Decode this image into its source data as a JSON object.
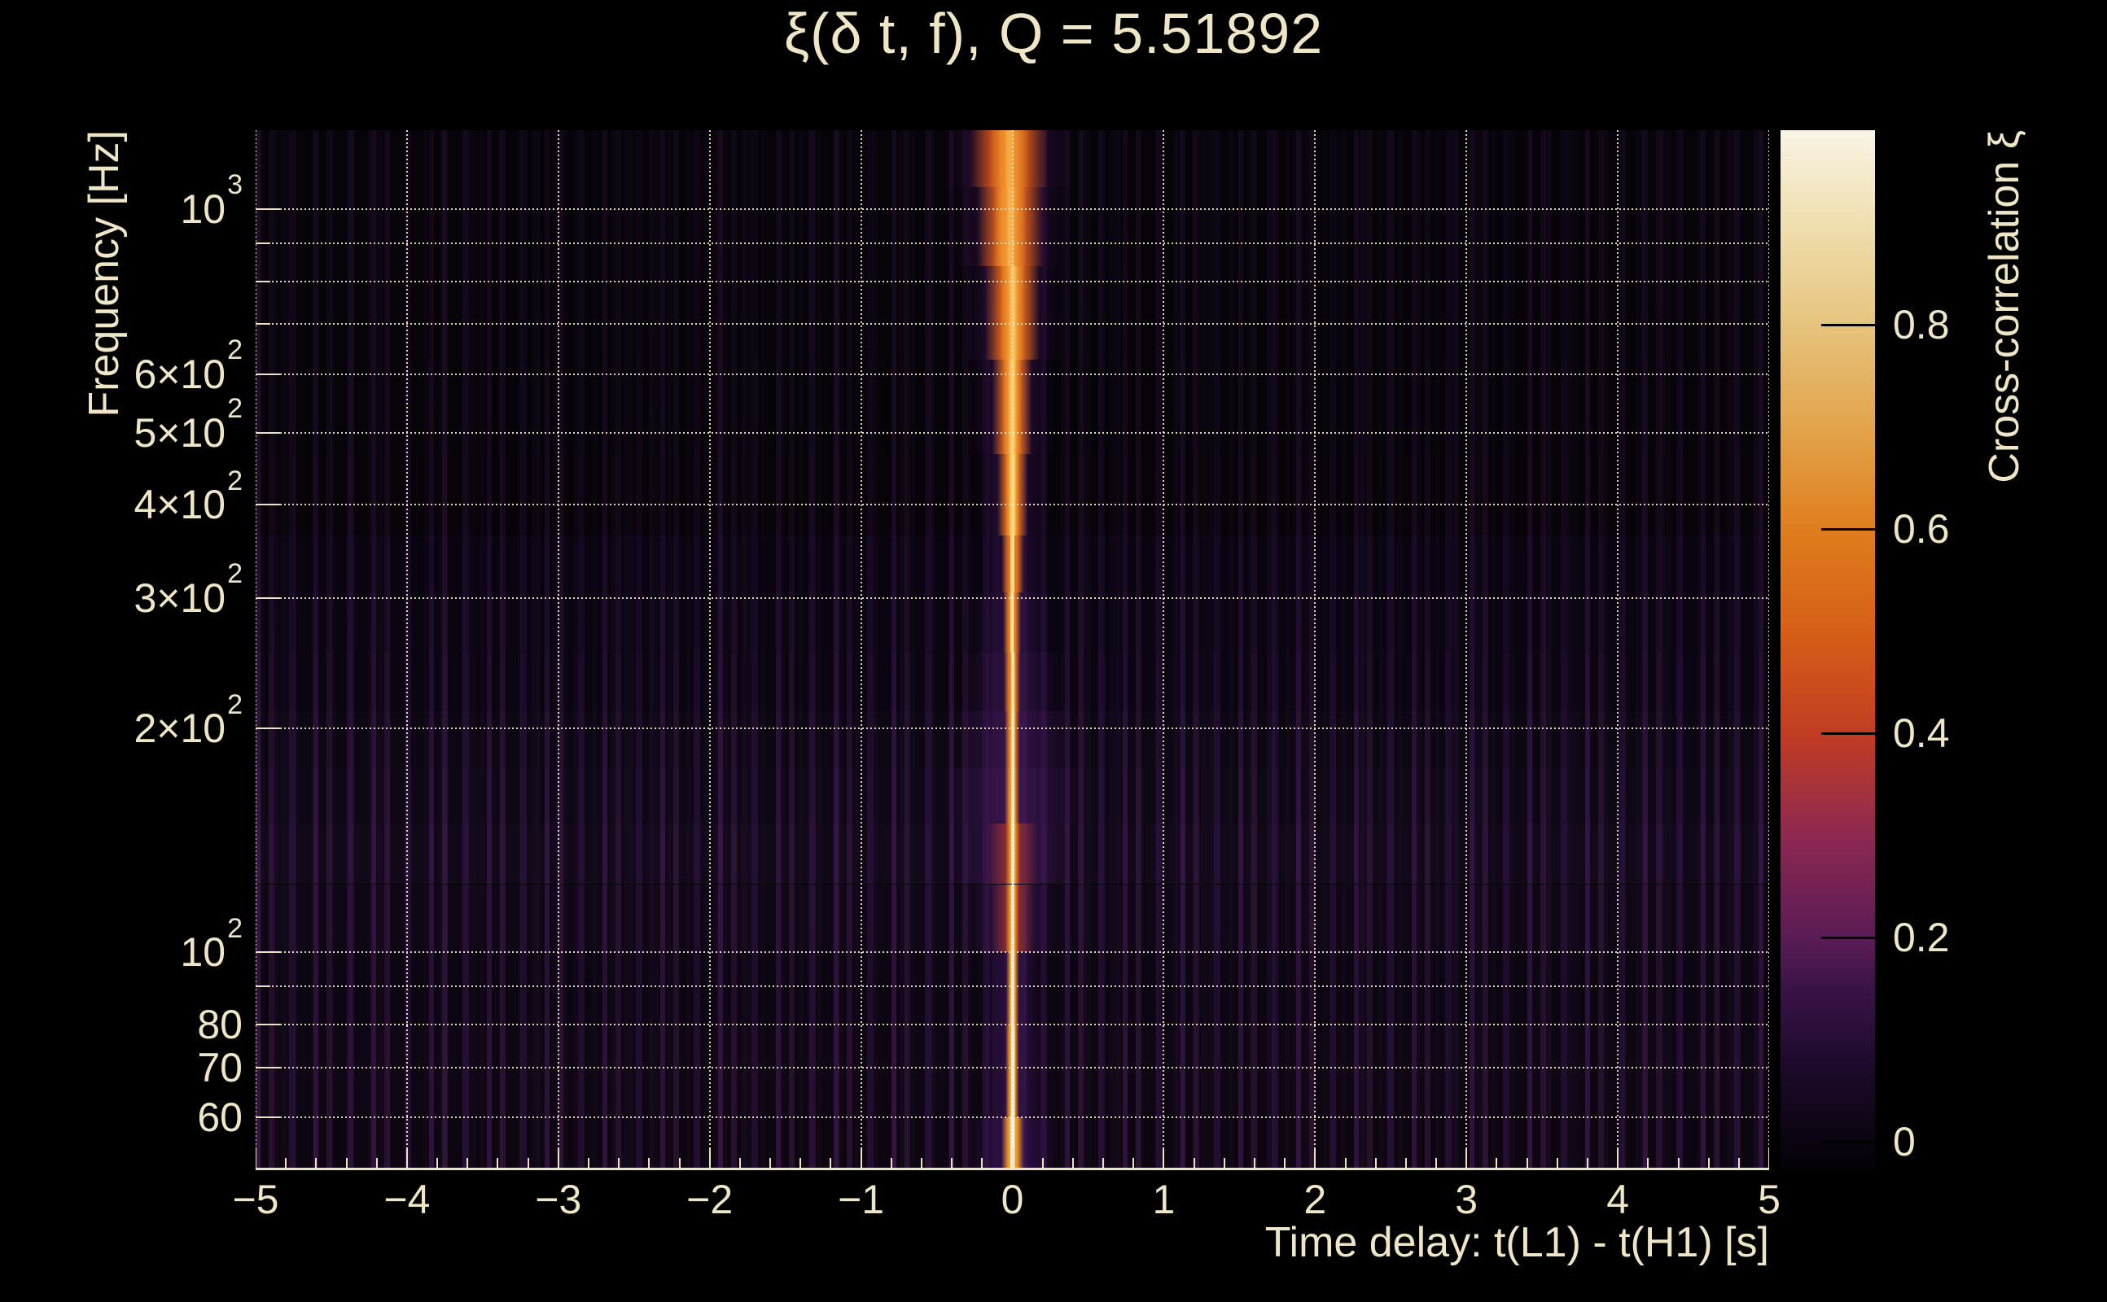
{
  "chart_data": {
    "type": "heatmap",
    "title": "ξ(δ t, f), Q = 5.51892",
    "x_axis": {
      "label": "Time delay: t(L1) - t(H1) [s]",
      "min": -5,
      "max": 5,
      "major_ticks": [
        -5,
        -4,
        -3,
        -2,
        -1,
        0,
        1,
        2,
        3,
        4,
        5
      ],
      "major_tick_labels": [
        "−5",
        "−4",
        "−3",
        "−2",
        "−1",
        "0",
        "1",
        "2",
        "3",
        "4",
        "5"
      ],
      "minor_tick_step": 0.2,
      "grid": "dotted"
    },
    "y_axis": {
      "label": "Frequency [Hz]",
      "scale": "log",
      "min": 50.9,
      "max": 1277,
      "labeled_ticks": [
        {
          "f": 1000,
          "base": "10",
          "sup": "3"
        },
        {
          "f": 600,
          "base": "6×10",
          "sup": "2"
        },
        {
          "f": 500,
          "base": "5×10",
          "sup": "2"
        },
        {
          "f": 400,
          "base": "4×10",
          "sup": "2"
        },
        {
          "f": 300,
          "base": "3×10",
          "sup": "2"
        },
        {
          "f": 200,
          "base": "2×10",
          "sup": "2"
        },
        {
          "f": 100,
          "base": "10",
          "sup": "2"
        },
        {
          "f": 80,
          "base": "80"
        },
        {
          "f": 70,
          "base": "70"
        },
        {
          "f": 60,
          "base": "60"
        }
      ],
      "gridline_freqs": [
        60,
        70,
        80,
        90,
        100,
        200,
        300,
        400,
        500,
        600,
        700,
        800,
        900,
        1000
      ],
      "unlabeled_tick_freqs": [
        90,
        700,
        800,
        900
      ],
      "grid": "dotted"
    },
    "colorbar": {
      "label": "Cross-correlation ξ",
      "min": -0.028,
      "max": 0.99,
      "ticks": [
        0,
        0.2,
        0.4,
        0.6,
        0.8
      ],
      "tick_labels": [
        "0",
        "0.2",
        "0.4",
        "0.6",
        "0.8"
      ],
      "gradient": [
        {
          "v": -0.028,
          "c": "#030106"
        },
        {
          "v": 0,
          "c": "#0b0410"
        },
        {
          "v": 0.08,
          "c": "#1e0b2d"
        },
        {
          "v": 0.15,
          "c": "#3b1347"
        },
        {
          "v": 0.2,
          "c": "#5a1c55"
        },
        {
          "v": 0.3,
          "c": "#8e2851"
        },
        {
          "v": 0.4,
          "c": "#c23d22"
        },
        {
          "v": 0.5,
          "c": "#d65f17"
        },
        {
          "v": 0.6,
          "c": "#df7e1e"
        },
        {
          "v": 0.7,
          "c": "#e3a44c"
        },
        {
          "v": 0.8,
          "c": "#e6c47e"
        },
        {
          "v": 0.9,
          "c": "#f0dfb0"
        },
        {
          "v": 0.99,
          "c": "#f8f4e6"
        }
      ]
    },
    "signal": {
      "description": "Bright cross-correlation ridge centered at zero time delay, wide at high frequency, narrowing to a white-hot line at low frequency",
      "center_t": 0,
      "bands": [
        {
          "f1": 1277,
          "f2": 1070,
          "dt": -0.02,
          "noise": 0.18,
          "bg": "#060309",
          "layers": [
            {
              "hw": 0.038,
              "c": "#f9ab42",
              "flat": true
            },
            {
              "hw": 0.13,
              "c": "#ee8b25",
              "flat": true
            },
            {
              "hw": 0.26,
              "c": "#cc5212",
              "flat": true
            },
            {
              "hw": 0.42,
              "c": "#341148",
              "flat": false
            }
          ]
        },
        {
          "f1": 1070,
          "f2": 838,
          "dt": -0.015,
          "noise": 0.18,
          "bg": "#060309",
          "layers": [
            {
              "hw": 0.033,
              "c": "#f9b250",
              "flat": true
            },
            {
              "hw": 0.11,
              "c": "#f09228",
              "flat": true
            },
            {
              "hw": 0.22,
              "c": "#d25a14",
              "flat": true
            },
            {
              "hw": 0.38,
              "c": "#321147",
              "flat": false
            }
          ]
        },
        {
          "f1": 838,
          "f2": 627,
          "dt": 0,
          "noise": 0.18,
          "bg": "#060309",
          "layers": [
            {
              "hw": 0.027,
              "c": "#fbc05c",
              "flat": true
            },
            {
              "hw": 0.08,
              "c": "#f29a2e",
              "flat": true
            },
            {
              "hw": 0.18,
              "c": "#d66014",
              "flat": true
            },
            {
              "hw": 0.33,
              "c": "#2f1044",
              "flat": false
            }
          ]
        },
        {
          "f1": 627,
          "f2": 468,
          "dt": 0,
          "noise": 0.2,
          "bg": "#060309",
          "layers": [
            {
              "hw": 0.024,
              "c": "#fccb69",
              "flat": true
            },
            {
              "hw": 0.06,
              "c": "#f4a133",
              "flat": true
            },
            {
              "hw": 0.13,
              "c": "#da6616",
              "flat": true
            },
            {
              "hw": 0.28,
              "c": "#2c0f41",
              "flat": false
            }
          ]
        },
        {
          "f1": 468,
          "f2": 364,
          "dt": 0,
          "noise": 0.22,
          "bg": "#070309",
          "layers": [
            {
              "hw": 0.021,
              "c": "#fdd577",
              "flat": true
            },
            {
              "hw": 0.046,
              "c": "#f5a838",
              "flat": true
            },
            {
              "hw": 0.1,
              "c": "#dd6c17",
              "flat": true
            },
            {
              "hw": 0.24,
              "c": "#2a0e3e",
              "flat": false
            }
          ]
        },
        {
          "f1": 364,
          "f2": 305,
          "dt": 0,
          "noise": 0.25,
          "bg": "#090410",
          "layers": [
            {
              "hw": 0.019,
              "c": "#fedf88",
              "flat": true
            },
            {
              "hw": 0.075,
              "c": "#e07218",
              "flat": true
            },
            {
              "hw": 0.22,
              "c": "#2a0e3e",
              "flat": false
            }
          ]
        },
        {
          "f1": 305,
          "f2": 253,
          "dt": 0,
          "noise": 0.3,
          "bg": "#0a0511",
          "layers": [
            {
              "hw": 0.017,
              "c": "#ffe696",
              "flat": true
            },
            {
              "hw": 0.06,
              "c": "#e37718",
              "flat": true
            },
            {
              "hw": 0.26,
              "c": "#2e1045",
              "flat": false
            }
          ]
        },
        {
          "f1": 253,
          "f2": 211,
          "dt": 0,
          "noise": 0.35,
          "bg": "#0b0512",
          "layers": [
            {
              "hw": 0.016,
              "c": "#ffeba4",
              "flat": true
            },
            {
              "hw": 0.055,
              "c": "#e67c19",
              "flat": true
            },
            {
              "hw": 0.3,
              "c": "#331249",
              "flat": false
            }
          ]
        },
        {
          "f1": 211,
          "f2": 177,
          "dt": 0,
          "noise": 0.4,
          "bg": "#0d0714",
          "layers": [
            {
              "hw": 0.016,
              "c": "#ffefb2",
              "flat": true
            },
            {
              "hw": 0.05,
              "c": "#e8811a",
              "flat": true
            },
            {
              "hw": 0.38,
              "c": "#38144e",
              "flat": false
            }
          ]
        },
        {
          "f1": 177,
          "f2": 149,
          "dt": 0,
          "noise": 0.45,
          "bg": "#0e0715",
          "layers": [
            {
              "hw": 0.016,
              "c": "#fff3c0",
              "flat": true
            },
            {
              "hw": 0.05,
              "c": "#ea861b",
              "flat": true
            },
            {
              "hw": 0.45,
              "c": "#3c1653",
              "flat": false
            }
          ]
        },
        {
          "f1": 149,
          "f2": 123.5,
          "dt": 0,
          "noise": 0.5,
          "bg": "#110818",
          "layers": [
            {
              "hw": 0.016,
              "c": "#fff7d0",
              "flat": true
            },
            {
              "hw": 0.048,
              "c": "#ec8b1c",
              "flat": true
            },
            {
              "hw": 0.17,
              "c": "#a23226",
              "flat": false
            },
            {
              "hw": 0.4,
              "c": "#3f1757",
              "flat": false
            }
          ]
        },
        {
          "f1": 123.5,
          "f2": 100,
          "dt": 0,
          "noise": 0.45,
          "bg": "#100716",
          "layers": [
            {
              "hw": 0.015,
              "c": "#fffbe0",
              "flat": true
            },
            {
              "hw": 0.045,
              "c": "#ee8f1d",
              "flat": true
            },
            {
              "hw": 0.14,
              "c": "#aa3522",
              "flat": false
            },
            {
              "hw": 0.28,
              "c": "#3a1550",
              "flat": false
            }
          ]
        },
        {
          "f1": 100,
          "f2": 80,
          "dt": 0,
          "noise": 0.4,
          "bg": "#0c0512",
          "layers": [
            {
              "hw": 0.015,
              "c": "#fffdee",
              "flat": true
            },
            {
              "hw": 0.042,
              "c": "#ef931e",
              "flat": true
            },
            {
              "hw": 0.2,
              "c": "#30114a",
              "flat": false
            }
          ]
        },
        {
          "f1": 80,
          "f2": 60,
          "dt": 0,
          "noise": 0.45,
          "bg": "#0e0613",
          "layers": [
            {
              "hw": 0.016,
              "c": "#fffef6",
              "flat": true
            },
            {
              "hw": 0.045,
              "c": "#f0961f",
              "flat": true
            },
            {
              "hw": 0.22,
              "c": "#321149",
              "flat": false
            }
          ]
        },
        {
          "f1": 60,
          "f2": 50.9,
          "dt": 0,
          "noise": 0.5,
          "bg": "#0d0611",
          "layers": [
            {
              "hw": 0.02,
              "c": "#ffffff",
              "flat": true
            },
            {
              "hw": 0.075,
              "c": "#f29a20",
              "flat": true
            },
            {
              "hw": 0.3,
              "c": "#361253",
              "flat": false
            }
          ]
        }
      ]
    }
  }
}
